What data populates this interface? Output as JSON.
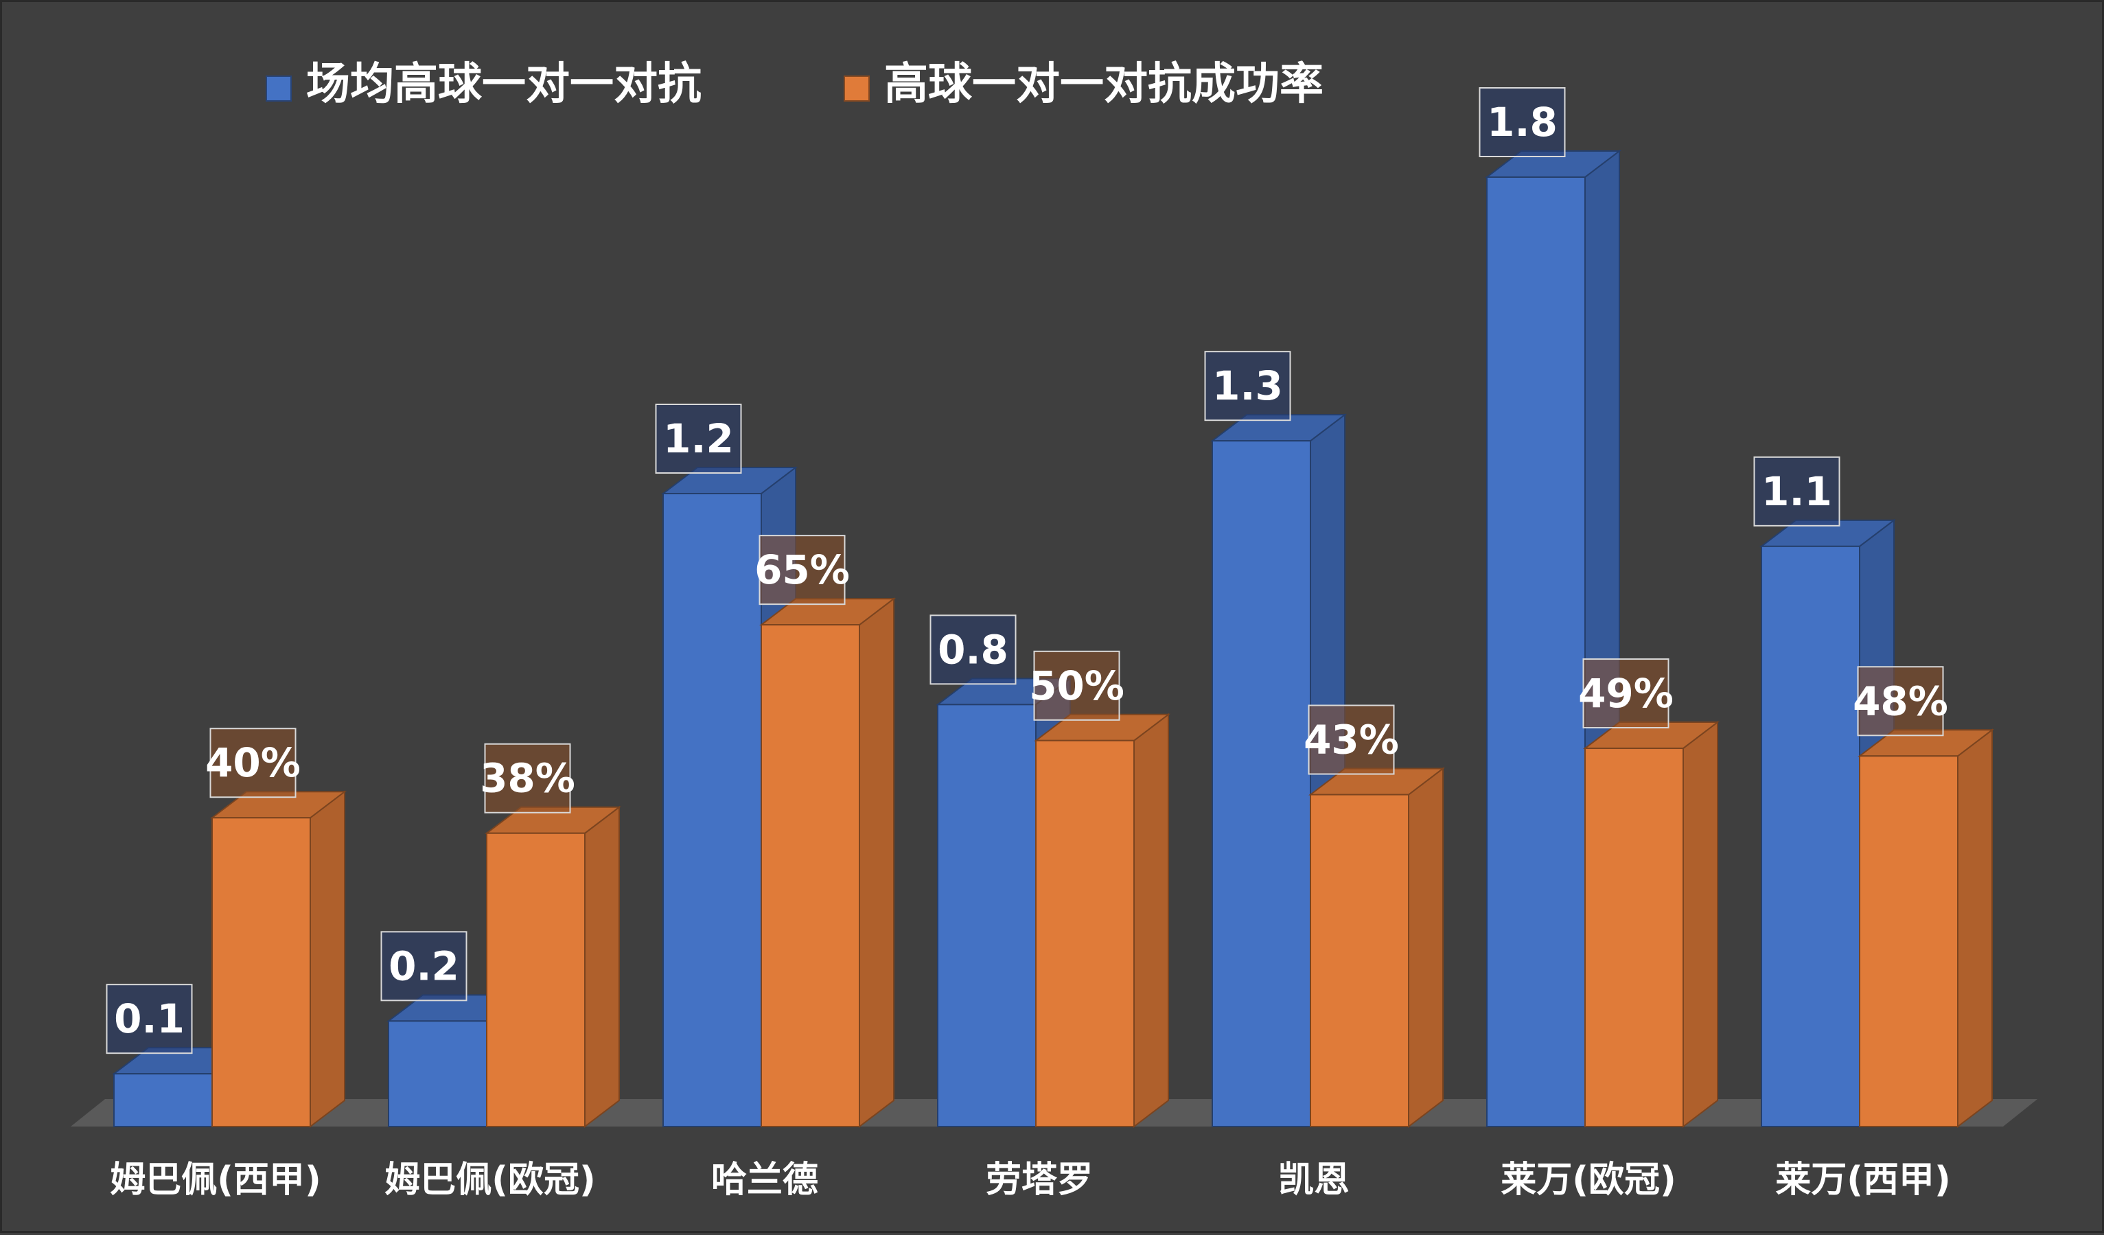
{
  "chart_data": {
    "type": "bar",
    "categories": [
      "姆巴佩(西甲)",
      "姆巴佩(欧冠)",
      "哈兰德",
      "劳塔罗",
      "凯恩",
      "莱万(欧冠)",
      "莱万(西甲)"
    ],
    "series": [
      {
        "name": "场均高球一对一对抗",
        "values": [
          0.1,
          0.2,
          1.2,
          0.8,
          1.3,
          1.8,
          1.1
        ],
        "labels": [
          "0.1",
          "0.2",
          "1.2",
          "0.8",
          "1.3",
          "1.8",
          "1.1"
        ],
        "color": "#4472c4",
        "ylim": [
          0,
          1.8
        ]
      },
      {
        "name": "高球一对一对抗成功率",
        "values": [
          0.4,
          0.38,
          0.65,
          0.5,
          0.43,
          0.49,
          0.48
        ],
        "labels": [
          "40%",
          "38%",
          "65%",
          "50%",
          "43%",
          "49%",
          "48%"
        ],
        "color": "#e07b39",
        "ylim": [
          0,
          1.23
        ]
      }
    ],
    "legend_position": "top",
    "grid": false,
    "style": "3d-column"
  }
}
